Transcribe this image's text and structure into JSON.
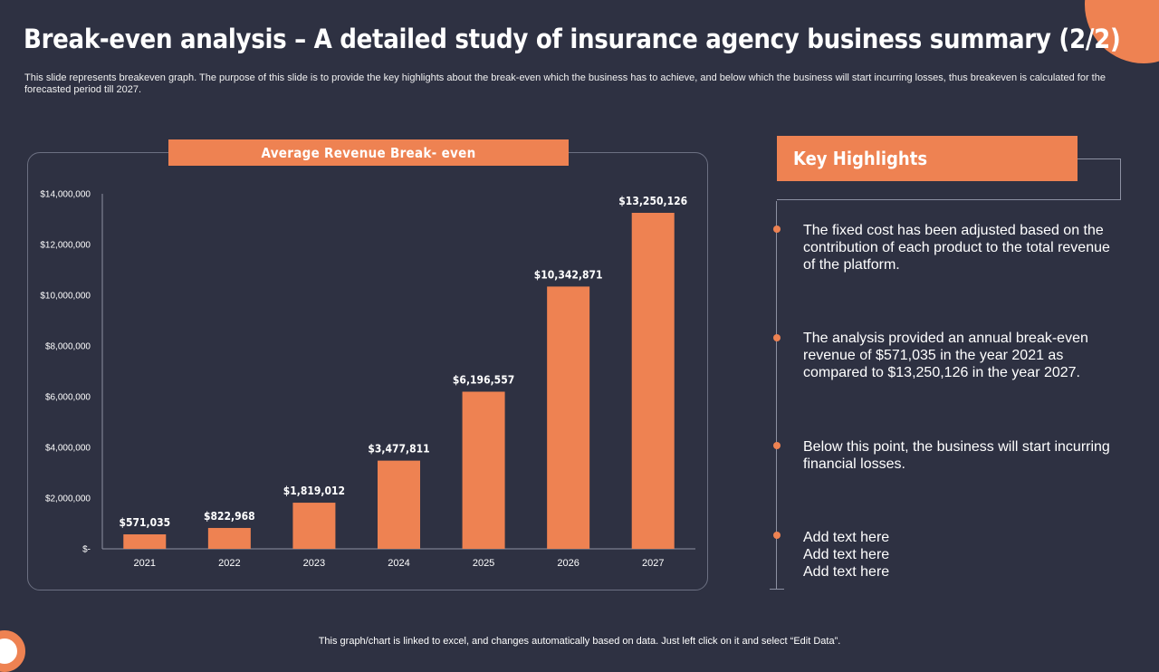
{
  "page": {
    "title": "Break-even analysis – A detailed study of insurance agency business summary (2/2)",
    "subtitle": "This slide represents breakeven graph. The purpose of this slide is to provide the key highlights about the break-even which the business has to achieve, and below which the business will start incurring losses, thus breakeven is calculated for the forecasted period till 2027.",
    "footer": "This graph/chart is linked to excel, and changes automatically based on data. Just left click on it and select “Edit Data”."
  },
  "chart_data": {
    "type": "bar",
    "title": "Average Revenue Break- even",
    "categories": [
      "2021",
      "2022",
      "2023",
      "2024",
      "2025",
      "2026",
      "2027"
    ],
    "values": [
      571035,
      822968,
      1819012,
      3477811,
      6196557,
      10342871,
      13250126
    ],
    "value_labels": [
      "$571,035",
      "$822,968",
      "$1,819,012",
      "$3,477,811",
      "$6,196,557",
      "$10,342,871",
      "$13,250,126"
    ],
    "y_ticks": [
      0,
      2000000,
      4000000,
      6000000,
      8000000,
      10000000,
      12000000,
      14000000
    ],
    "y_tick_labels": [
      "$-",
      "$2,000,000",
      "$4,000,000",
      "$6,000,000",
      "$8,000,000",
      "$10,000,000",
      "$12,000,000",
      "$14,000,000"
    ],
    "ylim": [
      0,
      14000000
    ],
    "xlabel": "",
    "ylabel": "",
    "grid": false,
    "legend": "none",
    "bar_color": "#ee8252"
  },
  "highlights": {
    "title": "Key Highlights",
    "items": [
      "The fixed cost has been adjusted based on the contribution of each product to the total revenue of the platform.",
      "The analysis provided an annual break-even revenue of $571,035 in the year 2021 as compared to $13,250,126 in the year 2027.",
      "Below this point, the business will start incurring financial losses.",
      "Add text here\nAdd text here\nAdd text here"
    ]
  },
  "colors": {
    "background": "#2e3142",
    "accent": "#ee8252",
    "text": "#ffffff"
  }
}
